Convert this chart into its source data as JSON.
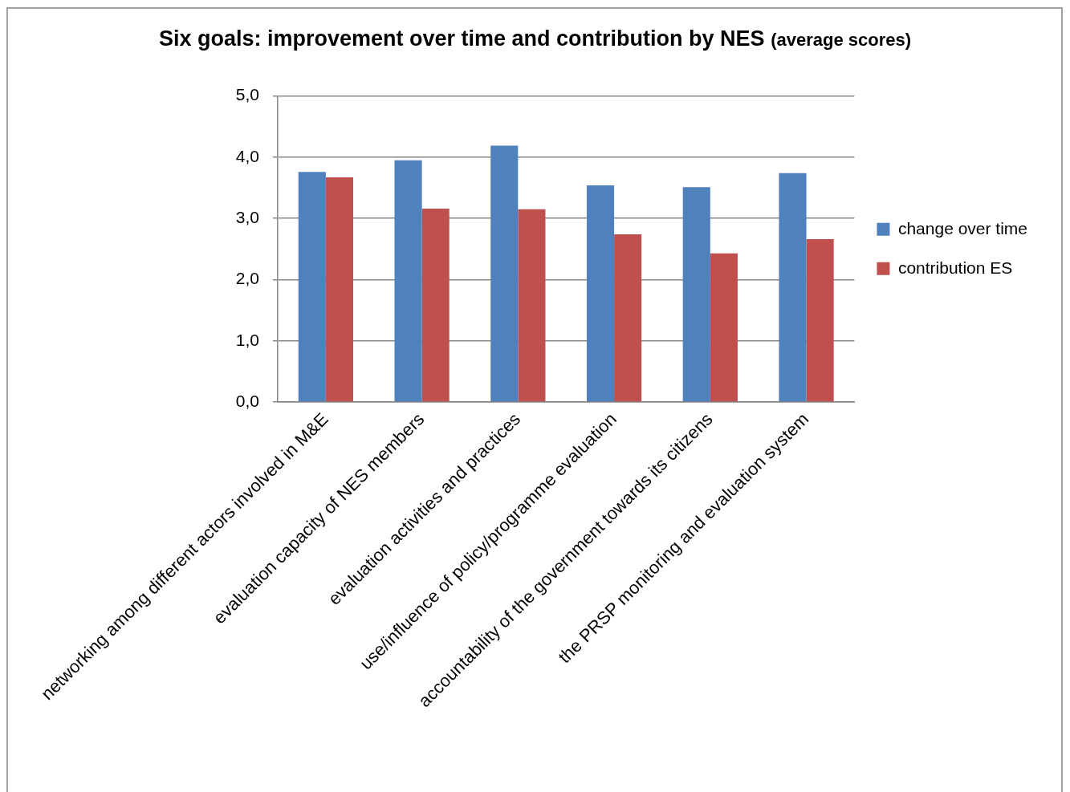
{
  "chart_data": {
    "type": "bar",
    "title": "Six goals: improvement over time and contribution by NES",
    "subtitle": "(average scores)",
    "categories": [
      "networking among different actors involved in M&E",
      "evaluation capacity of NES members",
      "evaluation activities and practices",
      "use/influence of policy/programme evaluation",
      "accountability of the government towards its citizens",
      "the PRSP monitoring and evaluation system"
    ],
    "series": [
      {
        "name": "change over time",
        "color": "#4f81bd",
        "values": [
          3.76,
          3.95,
          4.19,
          3.54,
          3.51,
          3.74
        ]
      },
      {
        "name": "contribution ES",
        "color": "#c0504d",
        "values": [
          3.67,
          3.16,
          3.15,
          2.74,
          2.43,
          2.66
        ]
      }
    ],
    "ylim": [
      0,
      5
    ],
    "yticks": [
      {
        "value": 0,
        "label": "0,0"
      },
      {
        "value": 1,
        "label": "1,0"
      },
      {
        "value": 2,
        "label": "2,0"
      },
      {
        "value": 3,
        "label": "3,0"
      },
      {
        "value": 4,
        "label": "4,0"
      },
      {
        "value": 5,
        "label": "5,0"
      }
    ],
    "grid": "y",
    "legend": "right"
  }
}
